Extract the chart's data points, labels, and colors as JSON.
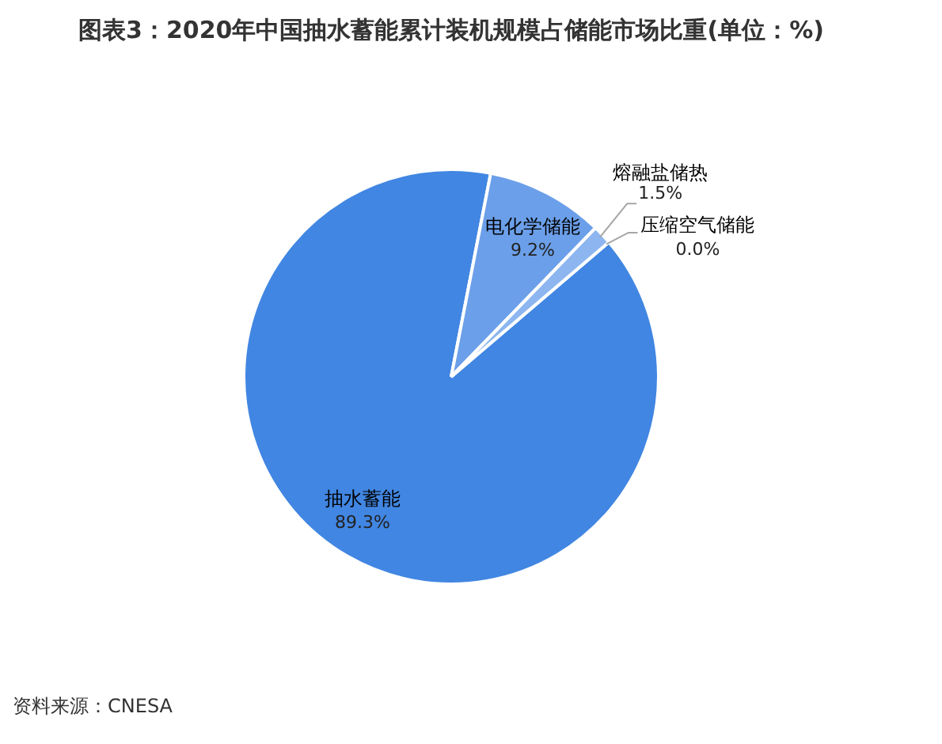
{
  "chart_data": {
    "type": "pie",
    "title": "图表3：2020年中国抽水蓄能累计装机规模占储能市场比重(单位：%)",
    "categories": [
      "抽水蓄能",
      "电化学储能",
      "熔融盐储热",
      "压缩空气储能"
    ],
    "values": [
      89.3,
      9.2,
      1.5,
      0.0
    ],
    "colors": [
      "#4186e2",
      "#6b9fe9",
      "#8db6f0",
      "#b3cff6"
    ],
    "value_labels": [
      "89.3%",
      "9.2%",
      "1.5%",
      "0.0%"
    ],
    "annotations": [
      "资料来源：CNESA"
    ]
  }
}
